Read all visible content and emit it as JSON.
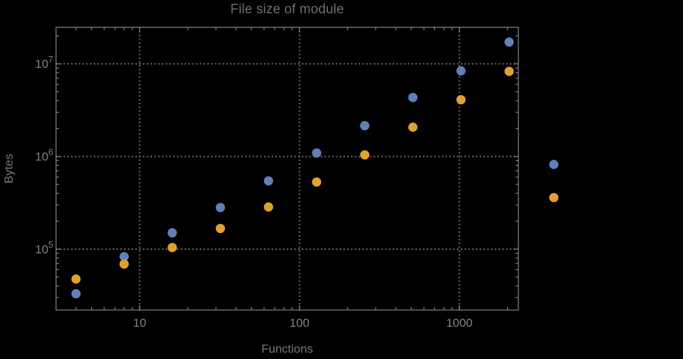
{
  "page": {
    "background": "#000000"
  },
  "chart_data": {
    "type": "scatter",
    "title": "File size of module",
    "xlabel": "Functions",
    "ylabel": "Bytes",
    "x_scale": "log",
    "y_scale": "log",
    "xlim": [
      3.0,
      2340
    ],
    "ylim": [
      22000,
      24800000
    ],
    "grid": {
      "style": "dotted",
      "at": "decades"
    },
    "x_ticks": {
      "values": [
        10,
        100,
        1000
      ],
      "labels": [
        "10",
        "100",
        "1000"
      ]
    },
    "y_ticks": {
      "values": [
        100000,
        1000000,
        10000000
      ],
      "labels": [
        {
          "base": "10",
          "exp": "5"
        },
        {
          "base": "10",
          "exp": "6"
        },
        {
          "base": "10",
          "exp": "7"
        }
      ]
    },
    "x": [
      4,
      8,
      16,
      32,
      64,
      128,
      256,
      512,
      1024,
      2048,
      3900
    ],
    "series": [
      {
        "name": "blue-series",
        "color": "#5e82b8",
        "values": [
          33000,
          83000,
          150000,
          281000,
          545000,
          1090000,
          2150000,
          4330000,
          8400000,
          17200000,
          820000
        ]
      },
      {
        "name": "orange-series",
        "color": "#e1a030",
        "values": [
          47500,
          69000,
          104000,
          167000,
          285000,
          530000,
          1040000,
          2070000,
          4100000,
          8300000,
          360000
        ]
      }
    ]
  }
}
